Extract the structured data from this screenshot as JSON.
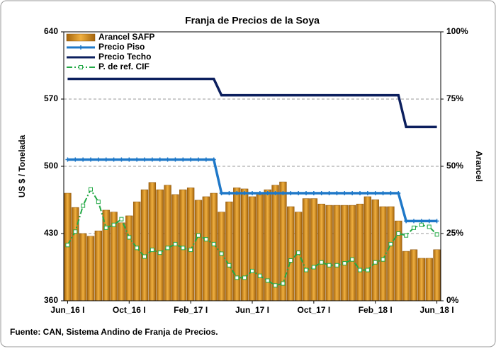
{
  "chart_data": {
    "type": "bar",
    "title": "Franja de Precios de la Soya",
    "y_label": "US $ / Tonelada",
    "y2_label": "Arancel",
    "source": "Fuente: CAN, Sistema Andino de Franja de Precios.",
    "categories": [
      "Jun_16 I",
      null,
      null,
      null,
      null,
      null,
      null,
      null,
      "Oct_16 I",
      null,
      null,
      null,
      null,
      null,
      null,
      null,
      "Feb_17 I",
      null,
      null,
      null,
      null,
      null,
      null,
      null,
      "Jun_17 I",
      null,
      null,
      null,
      null,
      null,
      null,
      null,
      "Oct_17 I",
      null,
      null,
      null,
      null,
      null,
      null,
      null,
      "Feb_18 I",
      null,
      null,
      null,
      null,
      null,
      null,
      null,
      "Jun_18 I"
    ],
    "ylim": [
      360,
      640
    ],
    "yticks": [
      360,
      430,
      500,
      570,
      640
    ],
    "y2lim": [
      0,
      100
    ],
    "y2ticks": [
      {
        "value": 0,
        "label": "0%"
      },
      {
        "value": 25,
        "label": "25%"
      },
      {
        "value": 50,
        "label": "50%"
      },
      {
        "value": 75,
        "label": "75%"
      },
      {
        "value": 100,
        "label": "100%"
      }
    ],
    "grid": true,
    "legend": "upper left",
    "series": [
      {
        "name": "Arancel SAFP",
        "type": "bar",
        "axis": "y2",
        "color": "#d18a1c",
        "values": [
          40,
          34.7,
          25,
          24,
          26,
          33.7,
          33,
          29,
          31.6,
          36.8,
          41.3,
          44,
          41.3,
          43,
          39.5,
          41.3,
          42,
          37.4,
          38.7,
          40,
          33,
          36.8,
          42,
          41.6,
          38.7,
          39.5,
          41.3,
          43,
          44.2,
          35,
          33,
          38,
          38,
          36,
          35.5,
          35.5,
          35.5,
          35.5,
          36,
          38.7,
          37.6,
          35,
          35,
          29.7,
          18.4,
          19,
          15.8,
          15.8,
          19
        ]
      },
      {
        "name": "Precio Piso",
        "type": "line",
        "color": "#1f78c8",
        "marker": "plus",
        "values": [
          507,
          507,
          507,
          507,
          507,
          507,
          507,
          507,
          507,
          507,
          507,
          507,
          507,
          507,
          507,
          507,
          507,
          507,
          507,
          507,
          472,
          472,
          472,
          472,
          472,
          472,
          472,
          472,
          472,
          472,
          472,
          472,
          472,
          472,
          472,
          472,
          472,
          472,
          472,
          472,
          472,
          472,
          472,
          472,
          443,
          443,
          443,
          443,
          443
        ]
      },
      {
        "name": "Precio Techo",
        "type": "line",
        "color": "#0c1f5e",
        "values": [
          591,
          591,
          591,
          591,
          591,
          591,
          591,
          591,
          591,
          591,
          591,
          591,
          591,
          591,
          591,
          591,
          591,
          591,
          591,
          591,
          574,
          574,
          574,
          574,
          574,
          574,
          574,
          574,
          574,
          574,
          574,
          574,
          574,
          574,
          574,
          574,
          574,
          574,
          574,
          574,
          574,
          574,
          574,
          574,
          541,
          541,
          541,
          541,
          541
        ]
      },
      {
        "name": "P. de ref. CIF",
        "type": "line",
        "color": "#22a845",
        "marker": "square",
        "dash": true,
        "values": [
          418,
          432,
          459,
          476,
          463,
          436,
          439,
          445,
          426,
          415,
          406,
          413,
          410,
          415,
          419,
          415,
          413,
          428,
          424,
          419,
          409,
          397,
          384,
          384,
          391,
          386,
          381,
          376,
          378,
          402,
          410,
          392,
          395,
          400,
          397,
          397,
          399,
          403,
          392,
          392,
          400,
          403,
          419,
          430,
          428,
          436,
          439,
          437,
          429
        ]
      }
    ]
  }
}
